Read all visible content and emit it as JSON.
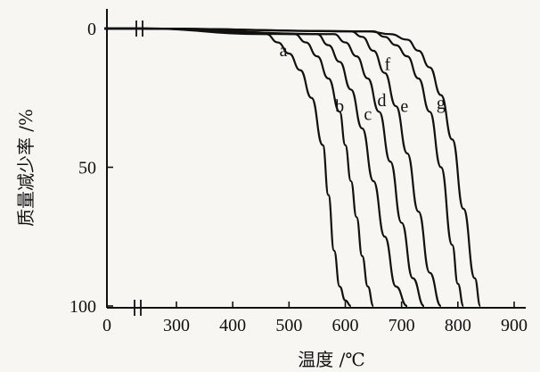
{
  "chart_data": {
    "type": "line",
    "xlabel": "温度 /℃",
    "ylabel": "质量减少率 /%",
    "x_ticks": [
      0,
      300,
      400,
      500,
      600,
      700,
      800,
      900
    ],
    "y_ticks": [
      0,
      50,
      100
    ],
    "xlim": [
      250,
      900
    ],
    "ylim": [
      0,
      100
    ],
    "x_axis_break": true,
    "y_inverted": true,
    "grid": false,
    "series": [
      {
        "name": "a",
        "x": [
          50,
          460,
          480,
          500,
          520,
          540,
          560,
          570,
          580,
          590,
          600,
          610
        ],
        "y": [
          0,
          2,
          5,
          9,
          15,
          25,
          42,
          60,
          80,
          93,
          98,
          100
        ],
        "label_at": [
          490,
          10
        ]
      },
      {
        "name": "b",
        "x": [
          50,
          510,
          530,
          550,
          570,
          590,
          600,
          610,
          620,
          630,
          640,
          650
        ],
        "y": [
          0,
          2,
          5,
          10,
          18,
          30,
          42,
          55,
          68,
          82,
          93,
          100
        ],
        "label_at": [
          590,
          30
        ]
      },
      {
        "name": "c",
        "x": [
          50,
          550,
          570,
          590,
          610,
          630,
          650,
          670,
          690,
          710
        ],
        "y": [
          0,
          2,
          6,
          12,
          22,
          36,
          55,
          75,
          93,
          100
        ],
        "label_at": [
          640,
          33
        ]
      },
      {
        "name": "d",
        "x": [
          50,
          580,
          600,
          620,
          640,
          660,
          680,
          700,
          720,
          740
        ],
        "y": [
          0,
          2,
          5,
          10,
          18,
          30,
          48,
          70,
          90,
          100
        ],
        "label_at": [
          665,
          28
        ]
      },
      {
        "name": "e",
        "x": [
          50,
          610,
          630,
          650,
          670,
          690,
          710,
          730,
          750,
          770
        ],
        "y": [
          0,
          1,
          3,
          8,
          16,
          28,
          45,
          66,
          88,
          100
        ],
        "label_at": [
          705,
          30
        ]
      },
      {
        "name": "f",
        "x": [
          50,
          650,
          670,
          690,
          710,
          730,
          750,
          770,
          790,
          800,
          810
        ],
        "y": [
          0,
          1,
          3,
          6,
          10,
          18,
          30,
          50,
          78,
          92,
          100
        ],
        "label_at": [
          675,
          15
        ]
      },
      {
        "name": "g",
        "x": [
          50,
          640,
          680,
          710,
          730,
          750,
          770,
          790,
          810,
          830,
          840
        ],
        "y": [
          0,
          1,
          2,
          4,
          8,
          14,
          24,
          40,
          65,
          90,
          100
        ],
        "label_at": [
          770,
          29
        ]
      }
    ]
  }
}
